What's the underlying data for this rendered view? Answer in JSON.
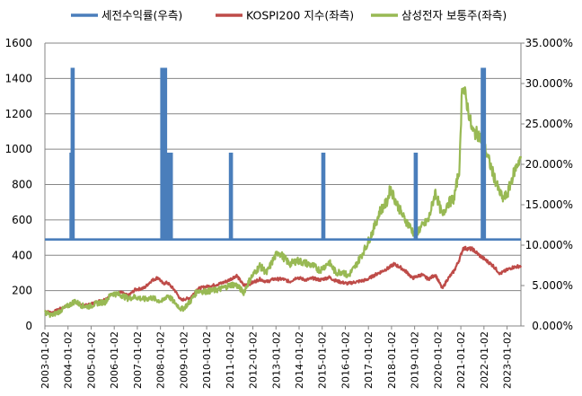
{
  "chart_data": {
    "type": "line",
    "legend": {
      "position": "top",
      "entries": [
        {
          "name": "세전수익률(우측)",
          "color": "#4A7EBB",
          "axis": "right"
        },
        {
          "name": "KOSPI200 지수(좌측)",
          "color": "#BE4B48",
          "axis": "left"
        },
        {
          "name": "삼성전자 보통주(좌측)",
          "color": "#98B954",
          "axis": "left"
        }
      ]
    },
    "left_axis": {
      "ylim": [
        0,
        1600
      ],
      "ticks": [
        "0",
        "200",
        "400",
        "600",
        "800",
        "1000",
        "1200",
        "1400",
        "1600"
      ]
    },
    "right_axis": {
      "ylim": [
        0,
        35
      ],
      "ticks": [
        "0.000%",
        "5.000%",
        "10.000%",
        "15.000%",
        "20.000%",
        "25.000%",
        "30.000%",
        "35.000%"
      ]
    },
    "x_axis": {
      "ticks": [
        "2003-01-02",
        "2004-01-02",
        "2005-01-02",
        "2006-01-02",
        "2007-01-02",
        "2008-01-02",
        "2009-01-02",
        "2010-01-02",
        "2011-01-02",
        "2012-01-02",
        "2013-01-02",
        "2014-01-02",
        "2015-01-02",
        "2016-01-02",
        "2017-01-02",
        "2018-01-02",
        "2019-01-02",
        "2020-01-02",
        "2021-01-02",
        "2022-01-02",
        "2023-01-02"
      ],
      "range": [
        2003.0,
        2023.6
      ]
    },
    "grid": true,
    "series": [
      {
        "name": "KOSPI200 지수(좌측)",
        "axis": "left",
        "points": [
          [
            2003.0,
            85
          ],
          [
            2003.3,
            75
          ],
          [
            2003.6,
            95
          ],
          [
            2003.9,
            110
          ],
          [
            2004.3,
            135
          ],
          [
            2004.6,
            115
          ],
          [
            2004.9,
            120
          ],
          [
            2005.3,
            140
          ],
          [
            2005.6,
            150
          ],
          [
            2005.9,
            180
          ],
          [
            2006.3,
            190
          ],
          [
            2006.6,
            170
          ],
          [
            2006.9,
            205
          ],
          [
            2007.3,
            215
          ],
          [
            2007.6,
            255
          ],
          [
            2007.9,
            275
          ],
          [
            2008.1,
            240
          ],
          [
            2008.3,
            245
          ],
          [
            2008.6,
            205
          ],
          [
            2008.9,
            145
          ],
          [
            2009.0,
            150
          ],
          [
            2009.3,
            160
          ],
          [
            2009.6,
            210
          ],
          [
            2009.9,
            220
          ],
          [
            2010.3,
            230
          ],
          [
            2010.6,
            240
          ],
          [
            2010.9,
            255
          ],
          [
            2011.1,
            270
          ],
          [
            2011.3,
            285
          ],
          [
            2011.6,
            230
          ],
          [
            2011.9,
            240
          ],
          [
            2012.3,
            265
          ],
          [
            2012.6,
            250
          ],
          [
            2012.9,
            265
          ],
          [
            2013.3,
            265
          ],
          [
            2013.6,
            250
          ],
          [
            2013.9,
            275
          ],
          [
            2014.3,
            260
          ],
          [
            2014.6,
            270
          ],
          [
            2014.9,
            260
          ],
          [
            2015.3,
            275
          ],
          [
            2015.6,
            255
          ],
          [
            2015.9,
            245
          ],
          [
            2016.1,
            240
          ],
          [
            2016.5,
            250
          ],
          [
            2016.9,
            260
          ],
          [
            2017.3,
            290
          ],
          [
            2017.6,
            310
          ],
          [
            2017.9,
            330
          ],
          [
            2018.1,
            350
          ],
          [
            2018.4,
            330
          ],
          [
            2018.7,
            300
          ],
          [
            2018.9,
            270
          ],
          [
            2019.3,
            290
          ],
          [
            2019.6,
            265
          ],
          [
            2019.9,
            290
          ],
          [
            2020.2,
            210
          ],
          [
            2020.4,
            260
          ],
          [
            2020.7,
            310
          ],
          [
            2020.95,
            380
          ],
          [
            2021.1,
            440
          ],
          [
            2021.5,
            435
          ],
          [
            2021.8,
            400
          ],
          [
            2022.1,
            370
          ],
          [
            2022.4,
            340
          ],
          [
            2022.7,
            295
          ],
          [
            2022.9,
            310
          ],
          [
            2023.2,
            330
          ],
          [
            2023.6,
            340
          ]
        ]
      },
      {
        "name": "삼성전자 보통주(좌측)",
        "axis": "left",
        "points": [
          [
            2003.0,
            75
          ],
          [
            2003.3,
            60
          ],
          [
            2003.6,
            80
          ],
          [
            2003.9,
            105
          ],
          [
            2004.3,
            140
          ],
          [
            2004.6,
            115
          ],
          [
            2004.9,
            110
          ],
          [
            2005.3,
            130
          ],
          [
            2005.6,
            135
          ],
          [
            2005.9,
            185
          ],
          [
            2006.3,
            175
          ],
          [
            2006.6,
            155
          ],
          [
            2006.9,
            165
          ],
          [
            2007.3,
            150
          ],
          [
            2007.6,
            160
          ],
          [
            2007.9,
            145
          ],
          [
            2008.1,
            140
          ],
          [
            2008.3,
            175
          ],
          [
            2008.6,
            135
          ],
          [
            2008.9,
            95
          ],
          [
            2009.0,
            100
          ],
          [
            2009.3,
            140
          ],
          [
            2009.6,
            200
          ],
          [
            2009.9,
            195
          ],
          [
            2010.3,
            200
          ],
          [
            2010.6,
            210
          ],
          [
            2010.9,
            225
          ],
          [
            2011.1,
            235
          ],
          [
            2011.3,
            230
          ],
          [
            2011.6,
            190
          ],
          [
            2011.9,
            270
          ],
          [
            2012.3,
            340
          ],
          [
            2012.6,
            300
          ],
          [
            2012.9,
            380
          ],
          [
            2013.1,
            420
          ],
          [
            2013.6,
            350
          ],
          [
            2013.9,
            370
          ],
          [
            2014.3,
            355
          ],
          [
            2014.6,
            340
          ],
          [
            2014.9,
            315
          ],
          [
            2015.3,
            360
          ],
          [
            2015.6,
            300
          ],
          [
            2015.9,
            310
          ],
          [
            2016.1,
            280
          ],
          [
            2016.4,
            330
          ],
          [
            2016.7,
            400
          ],
          [
            2016.9,
            450
          ],
          [
            2017.2,
            540
          ],
          [
            2017.5,
            650
          ],
          [
            2017.8,
            700
          ],
          [
            2017.95,
            780
          ],
          [
            2018.2,
            700
          ],
          [
            2018.5,
            620
          ],
          [
            2018.8,
            560
          ],
          [
            2019.0,
            520
          ],
          [
            2019.3,
            560
          ],
          [
            2019.6,
            600
          ],
          [
            2019.9,
            760
          ],
          [
            2020.2,
            620
          ],
          [
            2020.4,
            690
          ],
          [
            2020.7,
            720
          ],
          [
            2020.95,
            900
          ],
          [
            2021.05,
            1370
          ],
          [
            2021.2,
            1300
          ],
          [
            2021.5,
            1100
          ],
          [
            2021.8,
            1080
          ],
          [
            2022.0,
            1020
          ],
          [
            2022.3,
            900
          ],
          [
            2022.6,
            780
          ],
          [
            2022.8,
            720
          ],
          [
            2023.0,
            740
          ],
          [
            2023.3,
            870
          ],
          [
            2023.6,
            960
          ]
        ]
      },
      {
        "name": "세전수익률(우측)",
        "axis": "right",
        "baseline": 10.7,
        "spikes": [
          {
            "x": 2004.15,
            "value": 21.3
          },
          {
            "x": 2004.2,
            "value": 31.8
          },
          {
            "x": 2008.08,
            "value": 31.8
          },
          {
            "x": 2008.2,
            "value": 31.8
          },
          {
            "x": 2008.32,
            "value": 21.3
          },
          {
            "x": 2008.45,
            "value": 21.3
          },
          {
            "x": 2011.05,
            "value": 21.3
          },
          {
            "x": 2015.05,
            "value": 21.3
          },
          {
            "x": 2019.05,
            "value": 21.3
          },
          {
            "x": 2021.95,
            "value": 31.8
          },
          {
            "x": 2022.0,
            "value": 31.8
          }
        ]
      }
    ]
  }
}
